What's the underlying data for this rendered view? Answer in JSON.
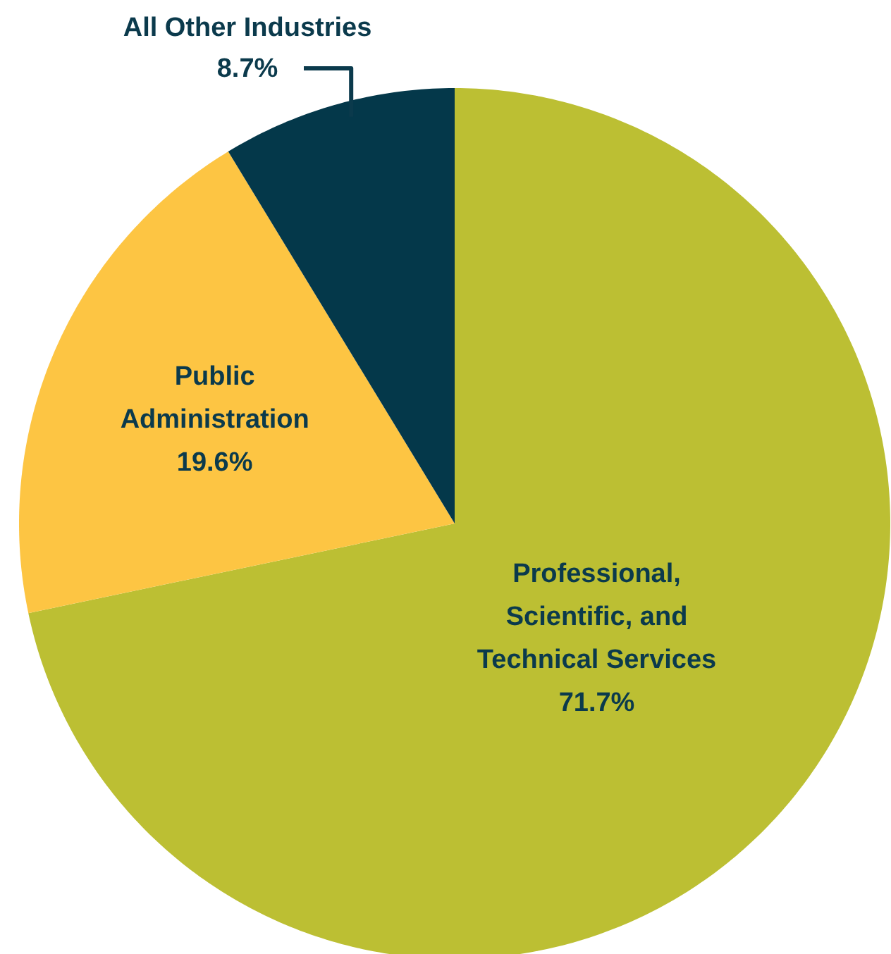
{
  "chart_data": {
    "type": "pie",
    "categories": [
      "Professional, Scientific, and Technical Services",
      "Public Administration",
      "All Other Industries"
    ],
    "values": [
      71.7,
      19.6,
      8.7
    ],
    "value_labels": [
      "71.7%",
      "19.6%",
      "8.7%"
    ],
    "colors": [
      "#bcbf33",
      "#fdc543",
      "#04384a"
    ]
  }
}
